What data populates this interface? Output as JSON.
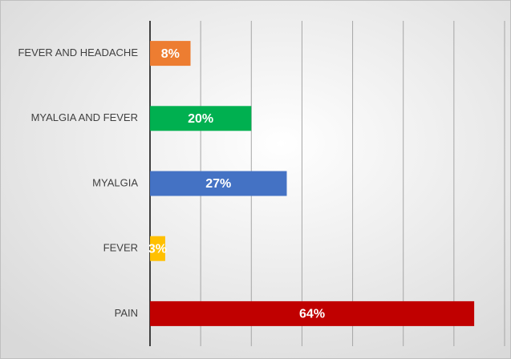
{
  "chart_data": {
    "type": "bar",
    "orientation": "horizontal",
    "categories": [
      "FEVER AND HEADACHE",
      "MYALGIA AND FEVER",
      "MYALGIA",
      "FEVER",
      "PAIN"
    ],
    "values": [
      8,
      20,
      27,
      3,
      64
    ],
    "value_labels": [
      "8%",
      "20%",
      "27%",
      "3%",
      "64%"
    ],
    "colors": [
      "#ed7d31",
      "#00b050",
      "#4472c4",
      "#ffc000",
      "#c00000"
    ],
    "xlim": [
      0,
      70
    ],
    "xticks": [
      0,
      10,
      20,
      30,
      40,
      50,
      60,
      70
    ],
    "grid": true
  }
}
